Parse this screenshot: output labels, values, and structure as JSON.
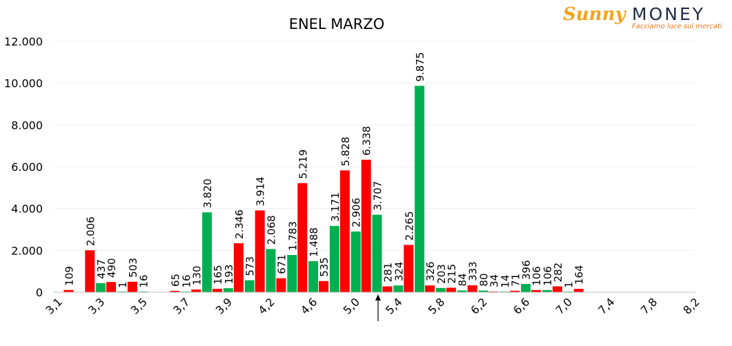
{
  "logo": {
    "brand_sunny": "Sunny",
    "brand_money": "MONEY",
    "tagline": "Facciamo luce sui mercati"
  },
  "colors": {
    "green": "#00b050",
    "red": "#ff0000",
    "grid": "#eeeeee",
    "axis": "#bfbfbf",
    "text": "#000000"
  },
  "chart_data": {
    "type": "bar",
    "title": "ENEL MARZO",
    "xlabel": "",
    "ylabel": "",
    "ylim": [
      0,
      12000
    ],
    "yticks": [
      "0",
      "2.000",
      "4.000",
      "6.000",
      "8.000",
      "10.000",
      "12.000"
    ],
    "grid": true,
    "legend": "none",
    "x_tick_labels": [
      "3,1",
      "3,3",
      "3,5",
      "3,7",
      "3,9",
      "4,2",
      "4,6",
      "5,0",
      "5,4",
      "5,8",
      "6,2",
      "6,6",
      "7,0",
      "7,4",
      "7,8",
      "8,2"
    ],
    "current_price_marker": "between 5,2 and 5,4",
    "series_colors": [
      "#00b050",
      "#ff0000"
    ],
    "series": [
      {
        "values": [
          null,
          null,
          437,
          1,
          16,
          null,
          16,
          3820,
          193,
          573,
          2068,
          1783,
          1488,
          3171,
          2906,
          3707,
          324,
          9875,
          203,
          84,
          80,
          14,
          396,
          106,
          1
        ],
        "labels": [
          "",
          "",
          "437",
          "1",
          "16",
          "",
          "16",
          "3.820",
          "193",
          "573",
          "2.068",
          "1.783",
          "1.488",
          "3.171",
          "2.906",
          "3.707",
          "324",
          "9.875",
          "203",
          "84",
          "80",
          "14",
          "396",
          "106",
          "1"
        ]
      },
      {
        "values": [
          109,
          2006,
          490,
          503,
          null,
          65,
          130,
          165,
          2346,
          3914,
          671,
          5219,
          535,
          5828,
          6338,
          281,
          2265,
          326,
          215,
          333,
          34,
          71,
          106,
          282,
          164
        ],
        "labels": [
          "109",
          "2.006",
          "490",
          "503",
          "",
          "65",
          "130",
          "165",
          "2.346",
          "3.914",
          "671",
          "5.219",
          "535",
          "5.828",
          "6.338",
          "281",
          "2.265",
          "326",
          "215",
          "333",
          "34",
          "71",
          "106",
          "282",
          "164"
        ]
      }
    ]
  }
}
